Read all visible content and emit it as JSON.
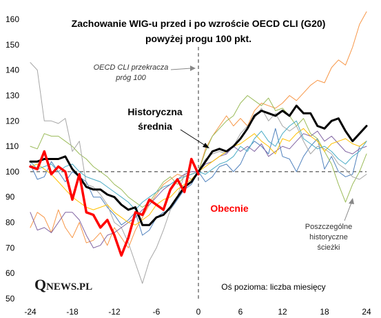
{
  "chart_data": {
    "type": "line",
    "title_lines": [
      "Zachowanie  WIG-u przed i po wzroście OECD CLI (G20)",
      "powyżej progu 100 pkt."
    ],
    "x_ticks": [
      -24,
      -18,
      -12,
      -6,
      0,
      6,
      12,
      18,
      24
    ],
    "y_ticks": [
      50,
      60,
      70,
      80,
      90,
      100,
      110,
      120,
      130,
      140,
      150,
      160
    ],
    "xlim": [
      -24,
      24
    ],
    "ylim": [
      50,
      160
    ],
    "reference_x": 0,
    "reference_y": 100,
    "annotations": {
      "threshold_lines": [
        "OECD CLI przekracza",
        "próg 100"
      ],
      "historical_lines": [
        "Historyczna",
        "średnia"
      ],
      "current": "Obecnie",
      "paths_lines": [
        "Poszczególne",
        "historyczne",
        "ścieżki"
      ],
      "x_axis_note": "Oś pozioma: liczba miesięcy"
    },
    "logo": {
      "q": "Q",
      "rest": "NEWS.PL"
    },
    "series": [
      {
        "name": "Historyczna średnia",
        "color": "#000000",
        "width": 3,
        "x": [
          -24,
          -23,
          -22,
          -21,
          -20,
          -19,
          -18,
          -17,
          -16,
          -15,
          -14,
          -13,
          -12,
          -11,
          -10,
          -9,
          -8,
          -7,
          -6,
          -5,
          -4,
          -3,
          -2,
          -1,
          0,
          1,
          2,
          3,
          4,
          5,
          6,
          7,
          8,
          9,
          10,
          11,
          12,
          13,
          14,
          15,
          16,
          17,
          18,
          19,
          20,
          21,
          22,
          23,
          24
        ],
        "y": [
          104,
          104,
          105,
          105,
          105,
          106,
          101,
          98,
          94,
          93,
          93,
          91,
          90,
          87,
          85,
          86,
          79,
          79,
          82,
          83,
          86,
          90,
          94,
          96,
          100,
          104,
          108,
          109,
          108,
          110,
          113,
          117,
          122,
          124,
          123,
          122,
          124,
          122,
          126,
          123,
          123,
          118,
          117,
          120,
          121,
          116,
          112,
          115,
          118
        ]
      },
      {
        "name": "Obecnie",
        "color": "#ff0000",
        "width": 3.5,
        "x": [
          -24,
          -23,
          -22,
          -21,
          -20,
          -19,
          -18,
          -17,
          -16,
          -15,
          -14,
          -13,
          -12,
          -11,
          -10,
          -9,
          -8,
          -7,
          -6,
          -5,
          -4,
          -3,
          -2,
          -1,
          0
        ],
        "y": [
          102,
          101,
          108,
          99,
          102,
          100,
          89,
          99,
          84,
          83,
          78,
          81,
          75,
          67,
          74,
          84,
          83,
          89,
          87,
          85,
          93,
          97,
          92,
          105,
          99
        ]
      },
      {
        "color": "#4f81bd",
        "width": 1,
        "x": [
          -24,
          -23,
          -22,
          -21,
          -20,
          -19,
          -18,
          -17,
          -16,
          -15,
          -14,
          -13,
          -12,
          -11,
          -10,
          -9,
          -8,
          -7,
          -6,
          -5,
          -4,
          -3,
          -2,
          -1,
          0,
          1,
          2,
          3,
          4,
          5,
          6,
          7,
          8,
          9,
          10,
          11,
          12,
          13,
          14,
          15,
          16,
          17,
          18,
          19,
          20,
          21,
          22,
          23,
          24
        ],
        "y": [
          103,
          97,
          98,
          104,
          100,
          96,
          100,
          98,
          96,
          90,
          90,
          86,
          83,
          79,
          81,
          84,
          75,
          77,
          82,
          84,
          85,
          89,
          93,
          95,
          100,
          96,
          98,
          102,
          103,
          100,
          103,
          109,
          112,
          110,
          107,
          117,
          106,
          105,
          100,
          106,
          110,
          113,
          101,
          106,
          100,
          98,
          99,
          110,
          112
        ]
      },
      {
        "color": "#f79646",
        "width": 1,
        "x": [
          -24,
          -23,
          -22,
          -21,
          -20,
          -19,
          -18,
          -17,
          -16,
          -15,
          -14,
          -13,
          -12,
          -11,
          -10,
          -9,
          -8,
          -7,
          -6,
          -5,
          -4,
          -3,
          -2,
          -1,
          0,
          1,
          2,
          3,
          4,
          5,
          6,
          7,
          8,
          9,
          10,
          11,
          12,
          13,
          14,
          15,
          16,
          17,
          18,
          19,
          20,
          21,
          22,
          23,
          24
        ],
        "y": [
          78,
          84,
          82,
          76,
          85,
          78,
          74,
          80,
          72,
          73,
          76,
          71,
          78,
          74,
          70,
          77,
          82,
          87,
          91,
          95,
          97,
          99,
          98,
          99,
          100,
          109,
          114,
          118,
          122,
          118,
          121,
          118,
          124,
          127,
          126,
          125,
          127,
          130,
          128,
          131,
          134,
          136,
          135,
          141,
          144,
          142,
          149,
          158,
          163
        ]
      },
      {
        "color": "#9bbb59",
        "width": 1,
        "x": [
          -24,
          -23,
          -22,
          -21,
          -20,
          -19,
          -18,
          -17,
          -16,
          -15,
          -14,
          -13,
          -12,
          -11,
          -10,
          -9,
          -8,
          -7,
          -6,
          -5,
          -4,
          -3,
          -2,
          -1,
          0,
          1,
          2,
          3,
          4,
          5,
          6,
          7,
          8,
          9,
          10,
          11,
          12,
          13,
          14,
          15,
          16,
          17,
          18,
          19,
          20,
          21,
          22,
          23,
          24
        ],
        "y": [
          110,
          109,
          115,
          114,
          114,
          112,
          110,
          107,
          105,
          102,
          100,
          98,
          95,
          93,
          90,
          88,
          86,
          88,
          92,
          96,
          98,
          95,
          98,
          99,
          100,
          108,
          114,
          117,
          120,
          122,
          127,
          130,
          128,
          126,
          129,
          124,
          125,
          122,
          118,
          121,
          115,
          113,
          108,
          103,
          95,
          88,
          95,
          100,
          107
        ]
      },
      {
        "color": "#a6a6a6",
        "width": 1,
        "x": [
          -24,
          -23,
          -22,
          -21,
          -20,
          -19,
          -18,
          -17,
          -16,
          -15,
          -14,
          -13,
          -12,
          -11,
          -10,
          -9,
          -8,
          -7,
          -6,
          -5,
          -4,
          -3,
          -2,
          -1,
          0,
          1,
          2,
          3,
          4,
          5,
          6,
          7,
          8,
          9,
          10,
          11,
          12,
          13,
          14,
          15,
          16,
          17,
          18,
          19,
          20,
          21,
          22,
          23,
          24
        ],
        "y": [
          143,
          140,
          120,
          120,
          119,
          121,
          108,
          112,
          95,
          94,
          91,
          87,
          80,
          78,
          72,
          64,
          56,
          65,
          70,
          77,
          85,
          90,
          99,
          97,
          100,
          105,
          107,
          108,
          107,
          110,
          115,
          118,
          121,
          125,
          120,
          123,
          118,
          116,
          118,
          112,
          107,
          110,
          109,
          107,
          103,
          101,
          98,
          97,
          99
        ]
      },
      {
        "color": "#8064a2",
        "width": 1,
        "x": [
          -24,
          -23,
          -22,
          -21,
          -20,
          -19,
          -18,
          -17,
          -16,
          -15,
          -14,
          -13,
          -12,
          -11,
          -10,
          -9,
          -8,
          -7,
          -6,
          -5,
          -4,
          -3,
          -2,
          -1,
          0,
          1,
          2,
          3,
          4,
          5,
          6,
          7,
          8,
          9,
          10,
          11,
          12,
          13,
          14,
          15,
          16,
          17,
          18,
          19,
          20,
          21,
          22,
          23,
          24
        ],
        "y": [
          84,
          77,
          78,
          76,
          80,
          84,
          84,
          81,
          75,
          70,
          71,
          75,
          76,
          78,
          80,
          82,
          85,
          87,
          90,
          93,
          95,
          97,
          99,
          100,
          100,
          103,
          104,
          106,
          107,
          110,
          108,
          110,
          108,
          111,
          106,
          108,
          110,
          109,
          112,
          115,
          114,
          116,
          112,
          114,
          111,
          108,
          107,
          109,
          110
        ]
      },
      {
        "color": "#ffc000",
        "width": 1,
        "x": [
          -24,
          -23,
          -22,
          -21,
          -20,
          -19,
          -18,
          -17,
          -16,
          -15,
          -14,
          -13,
          -12,
          -11,
          -10,
          -9,
          -8,
          -7,
          -6,
          -5,
          -4,
          -3,
          -2,
          -1,
          0,
          1,
          2,
          3,
          4,
          5,
          6,
          7,
          8,
          9,
          10,
          11,
          12,
          13,
          14,
          15,
          16,
          17,
          18,
          19,
          20,
          21,
          22,
          23,
          24
        ],
        "y": [
          102,
          103,
          101,
          99,
          96,
          93,
          90,
          88,
          86,
          85,
          86,
          87,
          84,
          82,
          80,
          79,
          81,
          83,
          87,
          89,
          90,
          93,
          95,
          97,
          100,
          102,
          104,
          106,
          108,
          110,
          111,
          113,
          115,
          112,
          110,
          107,
          113,
          112,
          115,
          117,
          114,
          112,
          108,
          111,
          112,
          113,
          111,
          110,
          112
        ]
      },
      {
        "color": "#4bacc6",
        "width": 1,
        "x": [
          -24,
          -23,
          -22,
          -21,
          -20,
          -19,
          -18,
          -17,
          -16,
          -15,
          -14,
          -13,
          -12,
          -11,
          -10,
          -9,
          -8,
          -7,
          -6,
          -5,
          -4,
          -3,
          -2,
          -1,
          0,
          1,
          2,
          3,
          4,
          5,
          6,
          7,
          8,
          9,
          10,
          11,
          12,
          13,
          14,
          15,
          16,
          17,
          18,
          19,
          20,
          21,
          22,
          23,
          24
        ],
        "y": [
          104,
          101,
          102,
          103,
          100,
          102,
          103,
          100,
          98,
          97,
          96,
          94,
          92,
          90,
          88,
          85,
          88,
          90,
          92,
          94,
          95,
          97,
          98,
          99,
          100,
          99,
          101,
          103,
          104,
          106,
          110,
          108,
          113,
          116,
          112,
          110,
          115,
          118,
          120,
          113,
          111,
          109,
          110,
          108,
          105,
          103,
          106,
          108,
          112
        ]
      }
    ]
  }
}
